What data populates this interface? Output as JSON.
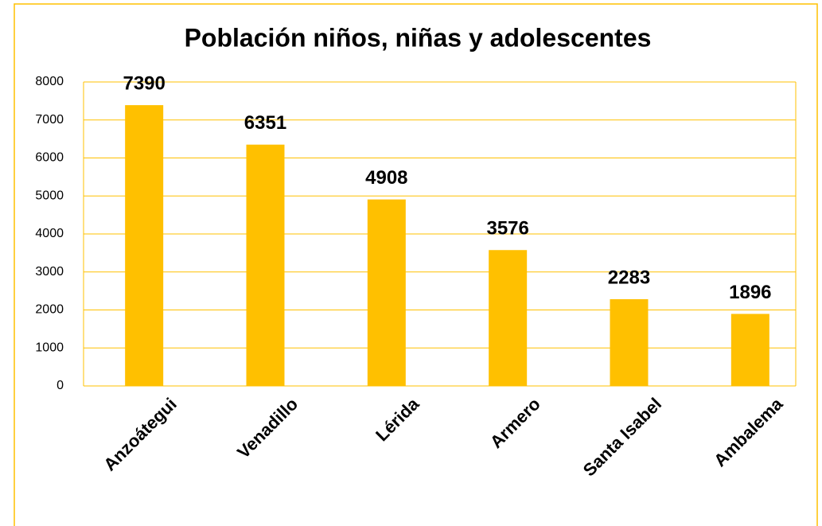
{
  "chart_data": {
    "type": "bar",
    "title": "Población niños, niñas y adolescentes",
    "categories": [
      "Anzoátegui",
      "Venadillo",
      "Lérida",
      "Armero",
      "Santa Isabel",
      "Ambalema"
    ],
    "values": [
      7390,
      6351,
      4908,
      3576,
      2283,
      1896
    ],
    "color": "#ffc000",
    "ylim": [
      0,
      8000
    ],
    "yticks": [
      0,
      1000,
      2000,
      3000,
      4000,
      5000,
      6000,
      7000,
      8000
    ],
    "grid": true
  }
}
